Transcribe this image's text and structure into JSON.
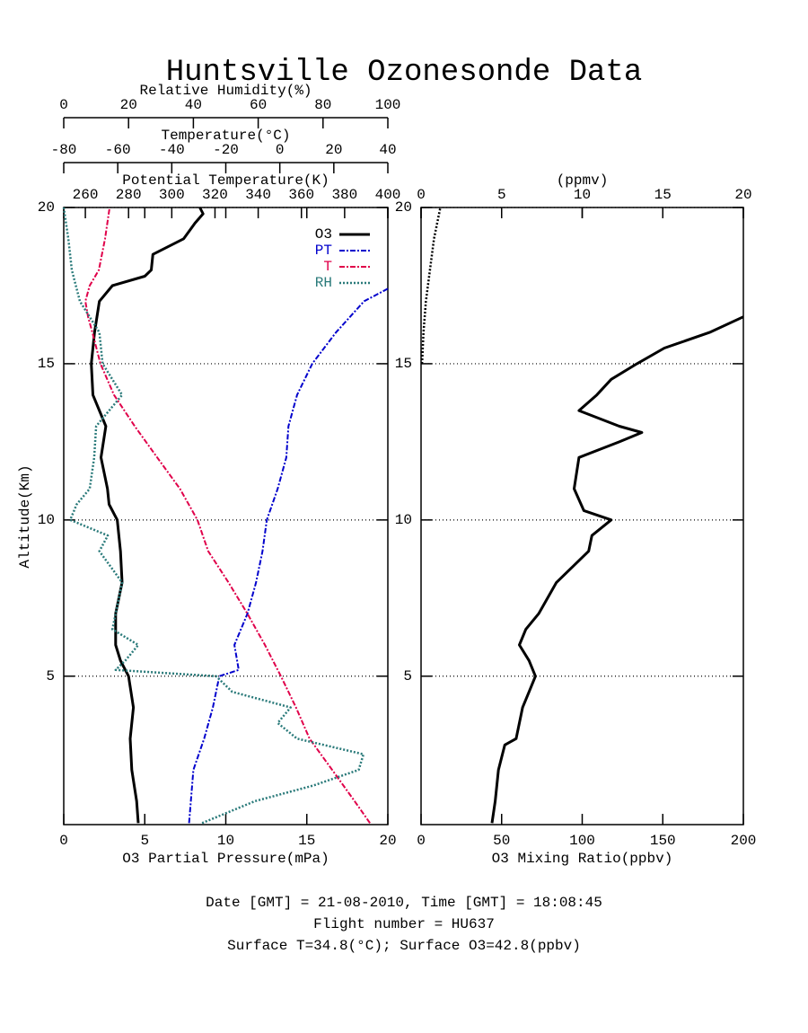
{
  "title": "Huntsville Ozonesonde Data",
  "footer": [
    "Date [GMT] = 21-08-2010,  Time [GMT] = 18:08:45",
    "Flight number = HU637",
    "Surface T=34.8(°C); Surface O3=42.8(ppbv)"
  ],
  "chart_data": [
    {
      "type": "line",
      "y_label": "Altitude(Km)",
      "ylim": [
        0.25,
        20
      ],
      "yticks": [
        5,
        10,
        15,
        20
      ],
      "grid": true,
      "legend": "upper right",
      "axes": [
        {
          "position": "bottom",
          "label": "O3 Partial Pressure(mPa)",
          "xlim": [
            0,
            20
          ],
          "xticks": [
            0,
            5,
            10,
            15,
            20
          ]
        },
        {
          "position": "top",
          "label": "Potential Temperature(K)",
          "xlim": [
            250,
            400
          ],
          "xticks": [
            260,
            280,
            300,
            320,
            340,
            360,
            380,
            400
          ]
        },
        {
          "position": "top",
          "label": "Temperature(°C)",
          "xlim": [
            -80,
            40
          ],
          "xticks": [
            -80,
            -60,
            -40,
            -20,
            0,
            20,
            40
          ]
        },
        {
          "position": "top",
          "label": "Relative Humidity(%)",
          "xlim": [
            0,
            100
          ],
          "xticks": [
            0,
            20,
            40,
            60,
            80,
            100
          ]
        }
      ],
      "series": [
        {
          "name": "O3",
          "color": "#000000",
          "axis": 0,
          "linestyle": "solid",
          "altitude": [
            0.3,
            1,
            2,
            3,
            4,
            5,
            5.5,
            6,
            7,
            8,
            9,
            10,
            10.5,
            11,
            12,
            13,
            14,
            15,
            16,
            17,
            17.5,
            17.8,
            18,
            18.5,
            19,
            19.5,
            19.8,
            20
          ],
          "values": [
            4.6,
            4.5,
            4.2,
            4.1,
            4.3,
            4.0,
            3.5,
            3.2,
            3.2,
            3.6,
            3.5,
            3.3,
            2.8,
            2.7,
            2.3,
            2.6,
            1.8,
            1.7,
            1.9,
            2.2,
            3.0,
            5.0,
            5.4,
            5.5,
            7.4,
            8.1,
            8.6,
            8.4
          ]
        },
        {
          "name": "PT",
          "color": "#0000cc",
          "axis": 1,
          "linestyle": "dashdot",
          "altitude": [
            0.3,
            2,
            3,
            4,
            5,
            5.2,
            6,
            7,
            8,
            9,
            10,
            11,
            12,
            13,
            14,
            15,
            16,
            17,
            17.4
          ],
          "values": [
            308,
            310,
            315,
            319,
            322,
            331,
            329,
            335,
            339,
            342,
            344,
            349,
            353,
            354,
            358,
            365,
            376,
            389,
            400
          ]
        },
        {
          "name": "T",
          "color": "#e0004a",
          "axis": 2,
          "linestyle": "dashdot",
          "altitude": [
            0.3,
            1,
            2,
            3,
            4,
            5,
            6,
            7,
            8,
            9,
            10,
            11,
            12,
            13,
            14,
            15,
            16,
            16.5,
            17,
            17.5,
            18,
            19,
            20
          ],
          "values": [
            33.4,
            27.7,
            19.4,
            11,
            6,
            0.4,
            -5.5,
            -12,
            -19,
            -26.5,
            -30.5,
            -37,
            -45.4,
            -53.7,
            -61.4,
            -66.4,
            -69.4,
            -71,
            -72,
            -70.4,
            -67,
            -64.7,
            -63
          ]
        },
        {
          "name": "RH",
          "color": "#2a7a7a",
          "axis": 3,
          "linestyle": "dotted",
          "altitude": [
            0.3,
            1,
            1.5,
            2,
            2.5,
            3,
            3.5,
            4,
            4.5,
            5,
            5.2,
            5.5,
            6,
            6.5,
            7,
            8,
            9,
            9.5,
            10,
            10.5,
            11,
            12,
            13,
            14,
            15,
            16,
            17,
            18,
            19,
            20
          ],
          "values": [
            42.7,
            59,
            77,
            91,
            92.5,
            72,
            66,
            70,
            52,
            47,
            16,
            19,
            23,
            15,
            16,
            18,
            11,
            13.6,
            2,
            4,
            8,
            9.4,
            10,
            18,
            12,
            11,
            5,
            2.5,
            1.4,
            0
          ]
        }
      ]
    },
    {
      "type": "line",
      "ylim": [
        0.25,
        20
      ],
      "yticks": [
        5,
        10,
        15,
        20
      ],
      "grid": true,
      "axes": [
        {
          "position": "bottom",
          "label": "O3 Mixing Ratio(ppbv)",
          "xlim": [
            0,
            200
          ],
          "xticks": [
            0,
            50,
            100,
            150,
            200
          ]
        },
        {
          "position": "top",
          "label": "(ppmv)",
          "xlim": [
            0,
            20
          ],
          "xticks": [
            0,
            5,
            10,
            15,
            20
          ]
        }
      ],
      "series": [
        {
          "color": "#000000",
          "axis": 0,
          "linestyle": "solid",
          "altitude": [
            0.3,
            1,
            2,
            2.8,
            3,
            4,
            4.5,
            5,
            5.5,
            6,
            6.5,
            7,
            8,
            9,
            9.5,
            10,
            10.3,
            11,
            12,
            12.5,
            12.8,
            13,
            13.5,
            14,
            14.5,
            15,
            15.5,
            16,
            16.5
          ],
          "values": [
            44,
            46,
            48,
            52,
            59,
            63,
            67,
            71,
            67,
            61,
            65,
            73,
            84,
            104,
            106,
            118,
            101,
            95,
            98,
            123,
            137,
            123,
            98,
            109,
            118,
            134,
            151,
            179,
            200
          ]
        },
        {
          "color": "#000000",
          "axis": 1,
          "linestyle": "dotted",
          "altitude": [
            15,
            16,
            17,
            18,
            19,
            20
          ],
          "values": [
            0.06,
            0.15,
            0.3,
            0.55,
            0.8,
            1.2
          ]
        }
      ]
    }
  ]
}
